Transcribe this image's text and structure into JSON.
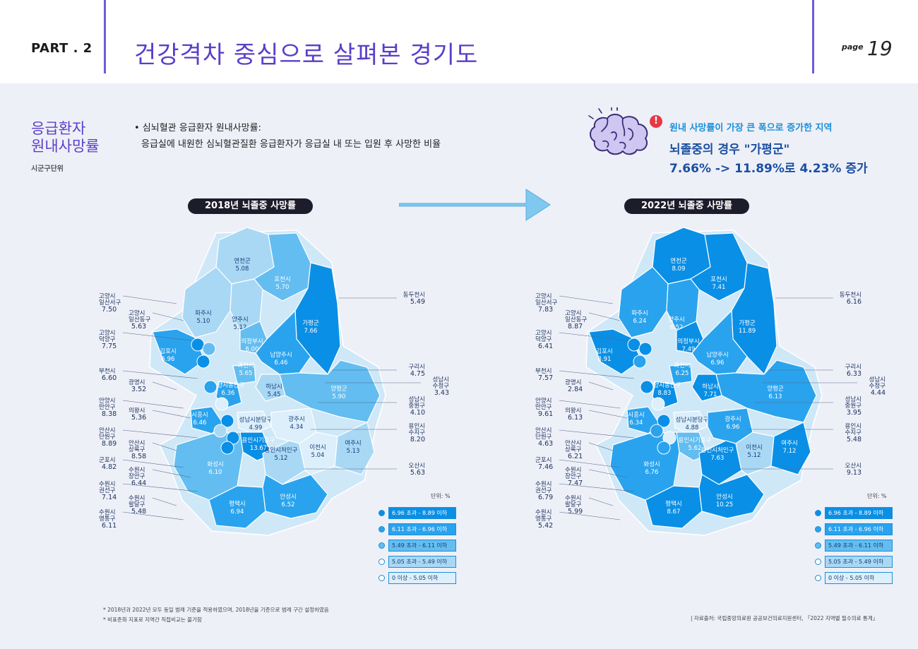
{
  "header": {
    "part": "PART . 2",
    "title": "건강격차 중심으로 살펴본 경기도",
    "page_label": "page",
    "page_number": "19"
  },
  "section": {
    "title_line1": "응급환자",
    "title_line2": "원내사망률",
    "subtitle": "시군구단위"
  },
  "definition": {
    "bullet": "• 심뇌혈관 응급환자 원내사망률:",
    "desc": "응급실에 내원한 심뇌혈관질환 응급환자가 응급실 내 또는 입원 후 사망한 비율"
  },
  "highlight": {
    "icon": "brain-icon",
    "warn_icon": "warning-icon",
    "title": "원내 사망률이 가장 큰 폭으로 증가한 지역",
    "line1": "뇌졸중의 경우 \"가평군\"",
    "line2": "7.66% -> 11.89%로 4.23% 증가"
  },
  "colors": {
    "c1": "#0a8fe6",
    "c2": "#2aa3ee",
    "c3": "#63bdf0",
    "c4": "#a9d8f5",
    "c5": "#dceffb",
    "accent": "#5a3fc8"
  },
  "map2018": {
    "title": "2018년 뇌졸중 사망률",
    "inside": [
      {
        "name": "연천군",
        "value": "5.08"
      },
      {
        "name": "포천시",
        "value": "5.70"
      },
      {
        "name": "파주시",
        "value": "5.10"
      },
      {
        "name": "양주시",
        "value": "5.12"
      },
      {
        "name": "가평군",
        "value": "7.66"
      },
      {
        "name": "의정부시",
        "value": "6.00"
      },
      {
        "name": "김포시",
        "value": "6.96"
      },
      {
        "name": "남양주시",
        "value": "6.46"
      },
      {
        "name": "과천시",
        "value": "5.65"
      },
      {
        "name": "안양시동안구",
        "value": "6.36"
      },
      {
        "name": "하남시",
        "value": "5.45"
      },
      {
        "name": "양평군",
        "value": "5.90"
      },
      {
        "name": "시흥시",
        "value": "6.46"
      },
      {
        "name": "성남시분당구",
        "value": "4.99"
      },
      {
        "name": "광주시",
        "value": "4.34"
      },
      {
        "name": "용인시기흥구",
        "value": "13.67"
      },
      {
        "name": "용인시처인구",
        "value": "5.12"
      },
      {
        "name": "이천시",
        "value": "5.04"
      },
      {
        "name": "여주시",
        "value": "5.13"
      },
      {
        "name": "화성시",
        "value": "6.10"
      },
      {
        "name": "평택시",
        "value": "6.94"
      },
      {
        "name": "안성시",
        "value": "6.52"
      }
    ],
    "left": [
      {
        "name1": "고양시",
        "name2": "일산서구",
        "value": "7.50"
      },
      {
        "name1": "고양시",
        "name2": "일산동구",
        "value": "5.63"
      },
      {
        "name1": "고양시",
        "name2": "덕양구",
        "value": "7.75"
      },
      {
        "name1": "부천시",
        "name2": "",
        "value": "6.60"
      },
      {
        "name1": "광명시",
        "name2": "",
        "value": "3.52"
      },
      {
        "name1": "안양시",
        "name2": "만안구",
        "value": "8.38"
      },
      {
        "name1": "의왕시",
        "name2": "",
        "value": "5.36"
      },
      {
        "name1": "안산시",
        "name2": "단원구",
        "value": "8.89"
      },
      {
        "name1": "안산시",
        "name2": "상록구",
        "value": "8.58"
      },
      {
        "name1": "군포시",
        "name2": "",
        "value": "4.82"
      },
      {
        "name1": "수원시",
        "name2": "장안구",
        "value": "6.44"
      },
      {
        "name1": "수원시",
        "name2": "권선구",
        "value": "7.14"
      },
      {
        "name1": "수원시",
        "name2": "팔달구",
        "value": "5.48"
      },
      {
        "name1": "수원시",
        "name2": "영통구",
        "value": "6.11"
      }
    ],
    "right": [
      {
        "name1": "동두천시",
        "name2": "",
        "value": "5.49"
      },
      {
        "name1": "구리시",
        "name2": "",
        "value": "4.75"
      },
      {
        "name1": "성남시",
        "name2": "수정구",
        "value": "3.43"
      },
      {
        "name1": "성남시",
        "name2": "중원구",
        "value": "4.10"
      },
      {
        "name1": "용인시",
        "name2": "수지구",
        "value": "8.20"
      },
      {
        "name1": "오산시",
        "name2": "",
        "value": "5.63"
      }
    ],
    "unit": "단위: %"
  },
  "map2022": {
    "title": "2022년 뇌졸중 사망률",
    "inside": [
      {
        "name": "연천군",
        "value": "8.09"
      },
      {
        "name": "포천시",
        "value": "7.41"
      },
      {
        "name": "파주시",
        "value": "6.24"
      },
      {
        "name": "양주시",
        "value": "6.52"
      },
      {
        "name": "가평군",
        "value": "11.89"
      },
      {
        "name": "의정부시",
        "value": "7.49"
      },
      {
        "name": "김포시",
        "value": "8.91"
      },
      {
        "name": "남양주시",
        "value": "6.96"
      },
      {
        "name": "과천시",
        "value": "6.25"
      },
      {
        "name": "안양시동안구",
        "value": "8.83"
      },
      {
        "name": "하남시",
        "value": "7.71"
      },
      {
        "name": "양평군",
        "value": "6.13"
      },
      {
        "name": "시흥시",
        "value": "6.34"
      },
      {
        "name": "성남시분당구",
        "value": "4.88"
      },
      {
        "name": "광주시",
        "value": "6.96"
      },
      {
        "name": "용인시기흥구",
        "value": "5.62"
      },
      {
        "name": "용인시처인구",
        "value": "7.63"
      },
      {
        "name": "이천시",
        "value": "5.12"
      },
      {
        "name": "여주시",
        "value": "7.12"
      },
      {
        "name": "화성시",
        "value": "6.76"
      },
      {
        "name": "평택시",
        "value": "8.67"
      },
      {
        "name": "안성시",
        "value": "10.25"
      }
    ],
    "left": [
      {
        "name1": "고양시",
        "name2": "일산서구",
        "value": "7.83"
      },
      {
        "name1": "고양시",
        "name2": "일산동구",
        "value": "8.87"
      },
      {
        "name1": "고양시",
        "name2": "덕양구",
        "value": "6.41"
      },
      {
        "name1": "부천시",
        "name2": "",
        "value": "7.57"
      },
      {
        "name1": "광명시",
        "name2": "",
        "value": "2.84"
      },
      {
        "name1": "안양시",
        "name2": "만안구",
        "value": "9.61"
      },
      {
        "name1": "의왕시",
        "name2": "",
        "value": "6.13"
      },
      {
        "name1": "안산시",
        "name2": "단원구",
        "value": "4.63"
      },
      {
        "name1": "안산시",
        "name2": "상록구",
        "value": "6.21"
      },
      {
        "name1": "군포시",
        "name2": "",
        "value": "7.46"
      },
      {
        "name1": "수원시",
        "name2": "장안구",
        "value": "7.47"
      },
      {
        "name1": "수원시",
        "name2": "권선구",
        "value": "6.79"
      },
      {
        "name1": "수원시",
        "name2": "팔달구",
        "value": "5.99"
      },
      {
        "name1": "수원시",
        "name2": "영통구",
        "value": "5.42"
      }
    ],
    "right": [
      {
        "name1": "동두천시",
        "name2": "",
        "value": "6.16"
      },
      {
        "name1": "구리시",
        "name2": "",
        "value": "6.33"
      },
      {
        "name1": "성남시",
        "name2": "수정구",
        "value": "4.44"
      },
      {
        "name1": "성남시",
        "name2": "중원구",
        "value": "3.95"
      },
      {
        "name1": "용인시",
        "name2": "수지구",
        "value": "5.48"
      },
      {
        "name1": "오산시",
        "name2": "",
        "value": "9.13"
      }
    ],
    "unit": "단위: %"
  },
  "legend": [
    {
      "label": "6.96 초과 - 8.89 이하"
    },
    {
      "label": "6.11 초과 - 6.96 이하"
    },
    {
      "label": "5.49 초과 - 6.11 이하"
    },
    {
      "label": "5.05 초과 - 5.49 이하"
    },
    {
      "label": "0 이상 - 5.05 이하"
    }
  ],
  "notes": {
    "note1": "* 2018년과 2022년 모두 동일 범례 기준을 적용하였으며, 2018년을 기준으로 범례 구간 설정하였음",
    "note2": "* 비표준화 지표로 지역간 직접비교는 불가함",
    "source": "| 자료출처: 국립중앙의료원 공공보건의료지원센터, 「2022 지역별 필수의료 통계」"
  }
}
